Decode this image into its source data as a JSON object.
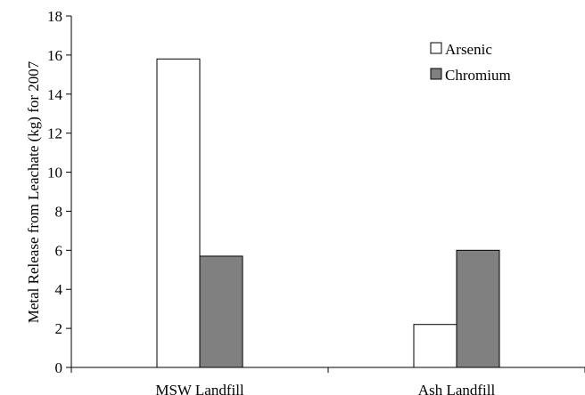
{
  "chart_data": {
    "type": "bar",
    "title": "",
    "xlabel": "",
    "ylabel": "Metal Release from Leachate (kg) for 2007",
    "categories": [
      "MSW Landfill",
      "Ash Landfill"
    ],
    "series": [
      {
        "name": "Arsenic",
        "values": [
          15.8,
          2.2
        ],
        "color": "#ffffff"
      },
      {
        "name": "Chromium",
        "values": [
          5.7,
          6.0
        ],
        "color": "#808080"
      }
    ],
    "ylim": [
      0,
      18
    ],
    "yticks": [
      0,
      2,
      4,
      6,
      8,
      10,
      12,
      14,
      16,
      18
    ],
    "grid": false,
    "legend_position": "top-right"
  }
}
